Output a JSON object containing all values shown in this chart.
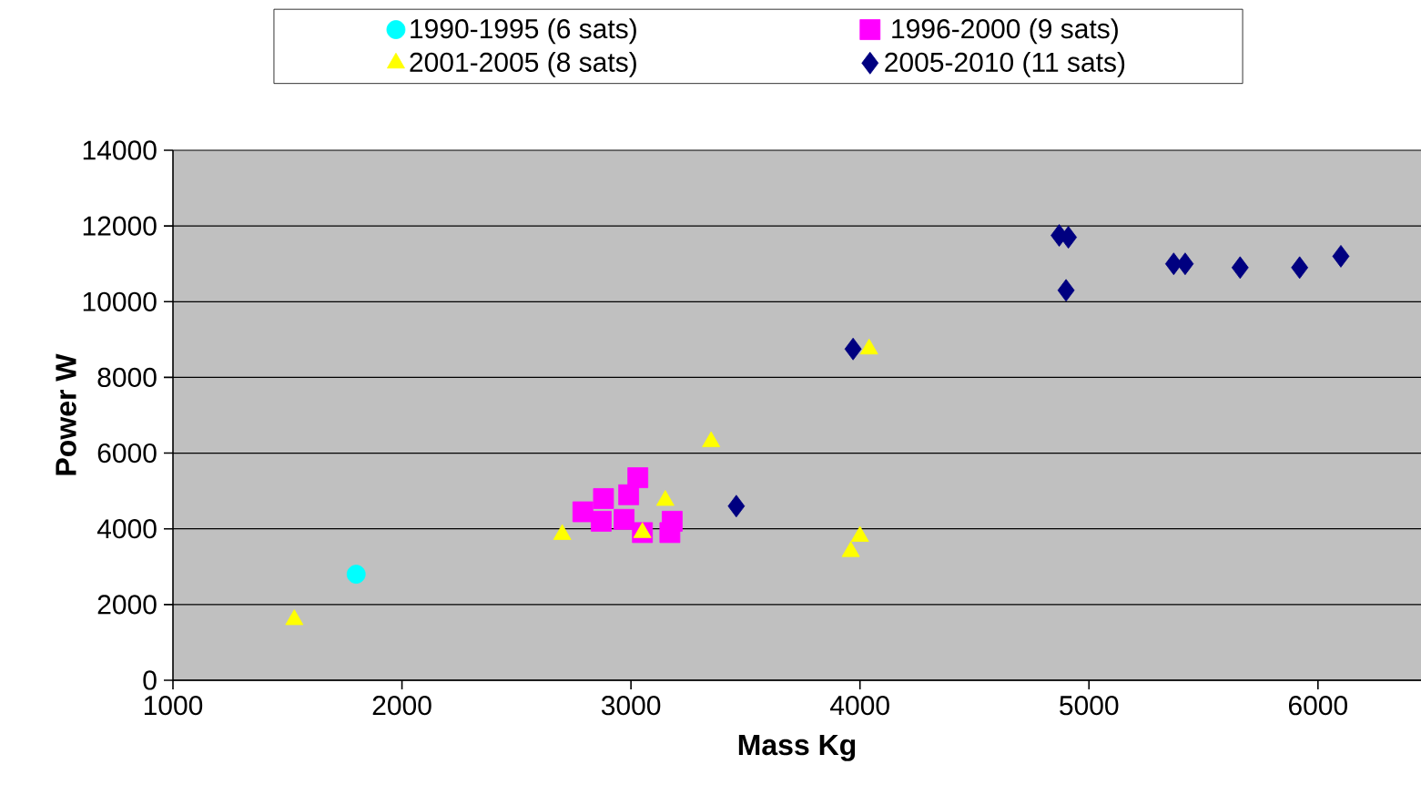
{
  "chart_data": {
    "type": "scatter",
    "xlabel": "Mass Kg",
    "ylabel": "Power W",
    "xlim": [
      1000,
      6450
    ],
    "ylim": [
      0,
      14000
    ],
    "xticks": [
      1000,
      2000,
      3000,
      4000,
      5000,
      6000
    ],
    "yticks": [
      0,
      2000,
      4000,
      6000,
      8000,
      10000,
      12000,
      14000
    ],
    "grid": "y",
    "legend": "top",
    "series": [
      {
        "name": "1990-1995 (6 sats)",
        "color": "#00ffff",
        "marker": "circle",
        "x": [
          1800
        ],
        "values": [
          2800
        ]
      },
      {
        "name": "1996-2000 (9 sats)",
        "color": "#ff00ff",
        "marker": "square",
        "x": [
          2790,
          2880,
          3030,
          2990,
          2870,
          2970,
          3050,
          3180,
          3170
        ],
        "values": [
          4450,
          4800,
          5350,
          4900,
          4200,
          4250,
          3900,
          4200,
          3900
        ]
      },
      {
        "name": "2001-2005 (8 sats)",
        "color": "#ffff00",
        "marker": "triangle",
        "x": [
          1530,
          2700,
          3050,
          3150,
          3350,
          4040,
          4000,
          3960
        ],
        "values": [
          1600,
          3850,
          3900,
          4750,
          6300,
          8750,
          3800,
          3400
        ]
      },
      {
        "name": "2005-2010 (11 sats)",
        "color": "#000080",
        "marker": "diamond",
        "x": [
          3460,
          3970,
          4870,
          4910,
          4900,
          5370,
          5420,
          5660,
          5920,
          6100
        ],
        "values": [
          4600,
          8750,
          11750,
          11700,
          10300,
          11000,
          11000,
          10900,
          10900,
          11200
        ]
      }
    ]
  }
}
